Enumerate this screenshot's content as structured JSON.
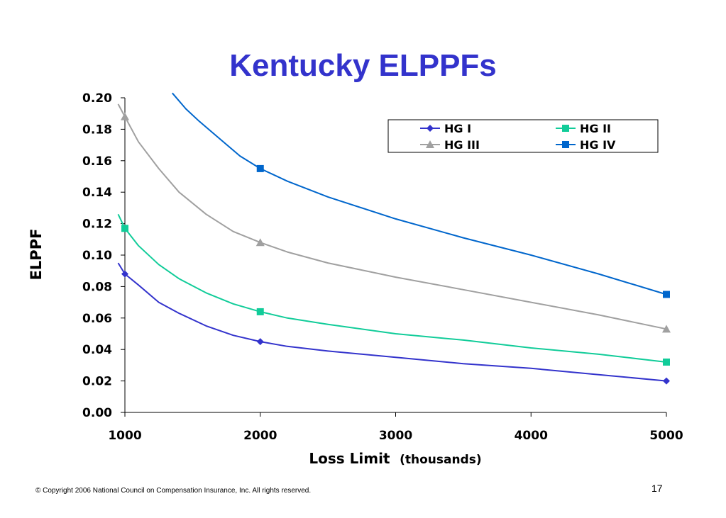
{
  "slide": {
    "title": "Kentucky ELPPFs",
    "copyright": "© Copyright 2006 National Council on Compensation Insurance, Inc.  All rights reserved.",
    "page_number": "17"
  },
  "chart_data": {
    "type": "line",
    "title": "Kentucky ELPPFs",
    "xlabel": "Loss Limit",
    "xlabel_suffix": "(thousands)",
    "ylabel": "ELPPF",
    "xlim": [
      1000,
      5000
    ],
    "ylim": [
      0,
      0.2
    ],
    "x_ticks": [
      "1000",
      "2000",
      "3000",
      "4000",
      "5000"
    ],
    "y_ticks": [
      "0.00",
      "0.02",
      "0.04",
      "0.06",
      "0.08",
      "0.10",
      "0.12",
      "0.14",
      "0.16",
      "0.18",
      "0.20"
    ],
    "grid": false,
    "legend_position": "top-right",
    "series": [
      {
        "name": "HG I",
        "color": "#3333cc",
        "marker": "diamond",
        "points": [
          [
            1000,
            0.088
          ],
          [
            2000,
            0.045
          ],
          [
            5000,
            0.02
          ]
        ],
        "curve": [
          [
            950,
            0.095
          ],
          [
            1000,
            0.088
          ],
          [
            1100,
            0.081
          ],
          [
            1250,
            0.07
          ],
          [
            1400,
            0.063
          ],
          [
            1600,
            0.055
          ],
          [
            1800,
            0.049
          ],
          [
            2000,
            0.045
          ],
          [
            2200,
            0.042
          ],
          [
            2500,
            0.039
          ],
          [
            3000,
            0.035
          ],
          [
            3500,
            0.031
          ],
          [
            4000,
            0.028
          ],
          [
            4500,
            0.024
          ],
          [
            5000,
            0.02
          ]
        ]
      },
      {
        "name": "HG II",
        "color": "#11cc99",
        "marker": "square",
        "points": [
          [
            1000,
            0.117
          ],
          [
            2000,
            0.064
          ],
          [
            5000,
            0.032
          ]
        ],
        "curve": [
          [
            950,
            0.126
          ],
          [
            1000,
            0.117
          ],
          [
            1100,
            0.106
          ],
          [
            1250,
            0.094
          ],
          [
            1400,
            0.085
          ],
          [
            1600,
            0.076
          ],
          [
            1800,
            0.069
          ],
          [
            2000,
            0.064
          ],
          [
            2200,
            0.06
          ],
          [
            2500,
            0.056
          ],
          [
            3000,
            0.05
          ],
          [
            3500,
            0.046
          ],
          [
            4000,
            0.041
          ],
          [
            4500,
            0.037
          ],
          [
            5000,
            0.032
          ]
        ]
      },
      {
        "name": "HG III",
        "color": "#a0a0a0",
        "marker": "triangle",
        "points": [
          [
            1000,
            0.188
          ],
          [
            2000,
            0.108
          ],
          [
            5000,
            0.053
          ]
        ],
        "curve": [
          [
            950,
            0.196
          ],
          [
            1000,
            0.188
          ],
          [
            1100,
            0.172
          ],
          [
            1250,
            0.155
          ],
          [
            1400,
            0.14
          ],
          [
            1600,
            0.126
          ],
          [
            1800,
            0.115
          ],
          [
            2000,
            0.108
          ],
          [
            2200,
            0.102
          ],
          [
            2500,
            0.095
          ],
          [
            3000,
            0.086
          ],
          [
            3500,
            0.078
          ],
          [
            4000,
            0.07
          ],
          [
            4500,
            0.062
          ],
          [
            5000,
            0.053
          ]
        ]
      },
      {
        "name": "HG IV",
        "color": "#0066cc",
        "marker": "square",
        "points": [
          [
            2000,
            0.155
          ],
          [
            5000,
            0.075
          ]
        ],
        "curve": [
          [
            1350,
            0.203
          ],
          [
            1450,
            0.193
          ],
          [
            1550,
            0.185
          ],
          [
            1700,
            0.174
          ],
          [
            1850,
            0.163
          ],
          [
            2000,
            0.155
          ],
          [
            2200,
            0.147
          ],
          [
            2500,
            0.137
          ],
          [
            3000,
            0.123
          ],
          [
            3500,
            0.111
          ],
          [
            4000,
            0.1
          ],
          [
            4500,
            0.088
          ],
          [
            5000,
            0.075
          ]
        ]
      }
    ]
  }
}
